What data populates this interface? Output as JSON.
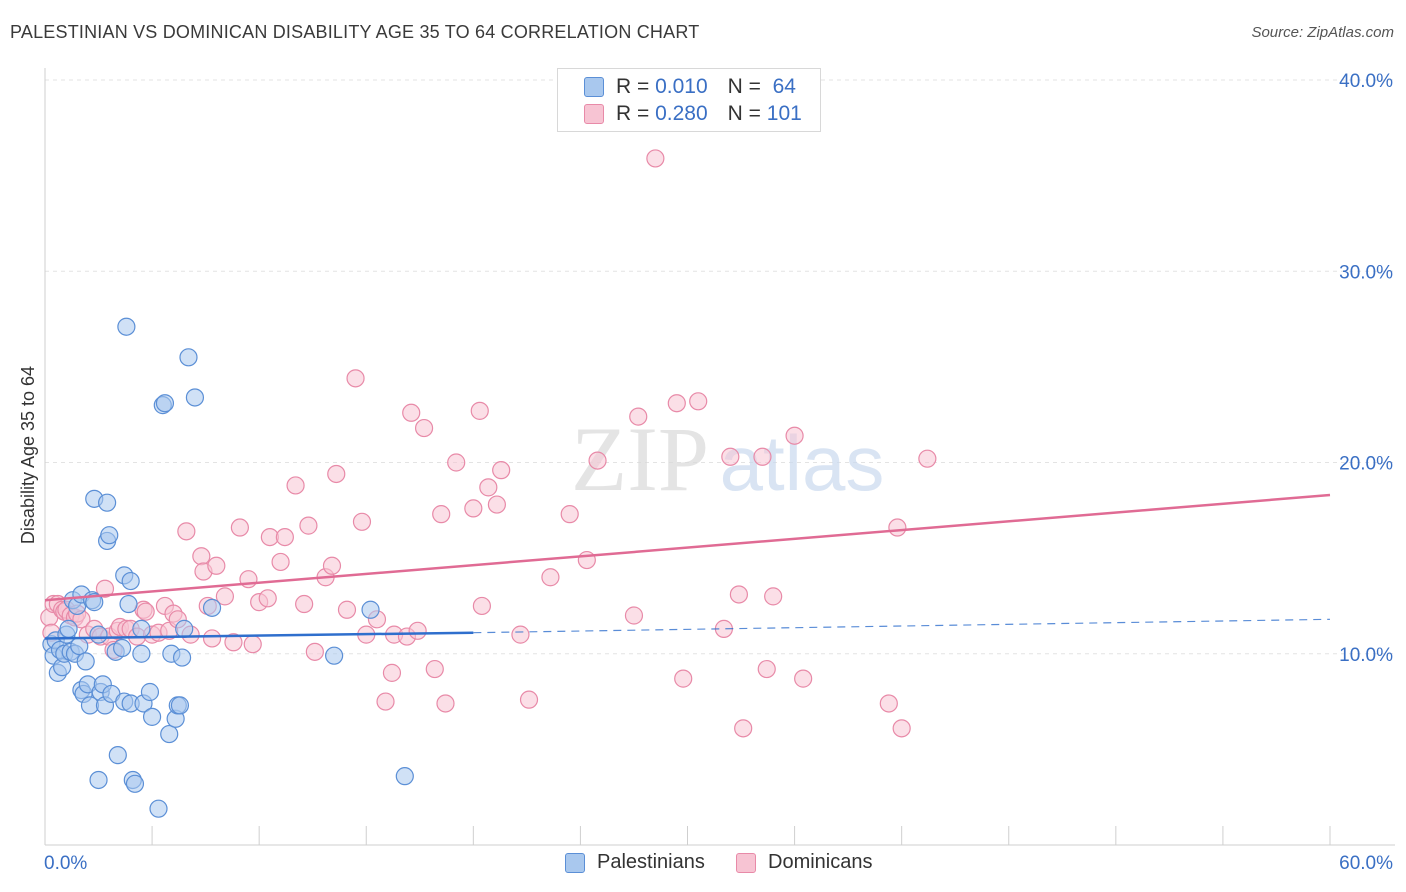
{
  "header": {
    "title": "PALESTINIAN VS DOMINICAN DISABILITY AGE 35 TO 64 CORRELATION CHART",
    "source": "Source: ZipAtlas.com"
  },
  "legend": {
    "rows": [
      {
        "r_label": "R =",
        "r_value": "0.010",
        "n_label": "N =",
        "n_value": "64"
      },
      {
        "r_label": "R =",
        "r_value": "0.280",
        "n_label": "N =",
        "n_value": "101"
      }
    ]
  },
  "watermark": {
    "part1": "ZIP",
    "part2": "atlas"
  },
  "colors": {
    "palestinian_fill": "#a9c8ee",
    "palestinian_stroke": "#5b8fd6",
    "palestinian_line": "#2f6fcd",
    "dominican_fill": "#f7c4d3",
    "dominican_stroke": "#e88aa8",
    "dominican_line": "#e06b94",
    "axis_text": "#3a6fc4",
    "grid": "#e3e3e3"
  },
  "chart_data": {
    "type": "scatter",
    "title": "PALESTINIAN VS DOMINICAN DISABILITY AGE 35 TO 64 CORRELATION CHART",
    "xlabel": "",
    "ylabel": "Disability Age 35 to 64",
    "xlim": [
      0,
      60
    ],
    "ylim": [
      0,
      40
    ],
    "x_tick_labels": [
      "0.0%",
      "60.0%"
    ],
    "y_ticks": [
      10,
      20,
      30,
      40
    ],
    "y_tick_labels": [
      "10.0%",
      "20.0%",
      "30.0%",
      "40.0%"
    ],
    "grid": true,
    "legend_position": "top-center",
    "series": [
      {
        "name": "Palestinians",
        "r": 0.01,
        "n": 64,
        "trend": {
          "x_start": 0,
          "y_start": 10.8,
          "x_solid_end": 20,
          "y_solid_end": 11.1,
          "x_end": 60,
          "y_end": 11.8
        },
        "points": [
          [
            0.3,
            10.5
          ],
          [
            0.4,
            9.9
          ],
          [
            0.5,
            10.7
          ],
          [
            0.6,
            9.0
          ],
          [
            0.7,
            10.2
          ],
          [
            0.8,
            9.3
          ],
          [
            0.9,
            10.0
          ],
          [
            1.0,
            11.0
          ],
          [
            1.1,
            11.3
          ],
          [
            1.2,
            10.1
          ],
          [
            1.3,
            12.8
          ],
          [
            1.4,
            10.0
          ],
          [
            1.5,
            12.5
          ],
          [
            1.6,
            10.4
          ],
          [
            1.7,
            13.1
          ],
          [
            1.7,
            8.1
          ],
          [
            1.8,
            7.9
          ],
          [
            1.9,
            9.6
          ],
          [
            2.0,
            8.4
          ],
          [
            2.1,
            7.3
          ],
          [
            2.2,
            12.8
          ],
          [
            2.3,
            12.7
          ],
          [
            2.3,
            18.1
          ],
          [
            2.5,
            3.4
          ],
          [
            2.5,
            11.0
          ],
          [
            2.6,
            8.0
          ],
          [
            2.7,
            8.4
          ],
          [
            2.8,
            7.3
          ],
          [
            2.9,
            17.9
          ],
          [
            2.9,
            15.9
          ],
          [
            3.0,
            16.2
          ],
          [
            3.1,
            7.9
          ],
          [
            3.3,
            10.1
          ],
          [
            3.4,
            4.7
          ],
          [
            3.6,
            10.3
          ],
          [
            3.7,
            7.5
          ],
          [
            3.7,
            14.1
          ],
          [
            3.8,
            27.1
          ],
          [
            3.9,
            12.6
          ],
          [
            4.0,
            7.4
          ],
          [
            4.0,
            13.8
          ],
          [
            4.1,
            3.4
          ],
          [
            4.2,
            3.2
          ],
          [
            4.5,
            11.3
          ],
          [
            4.5,
            10.0
          ],
          [
            4.6,
            7.4
          ],
          [
            4.9,
            8.0
          ],
          [
            5.0,
            6.7
          ],
          [
            5.3,
            1.9
          ],
          [
            5.5,
            23.0
          ],
          [
            5.6,
            23.1
          ],
          [
            5.8,
            5.8
          ],
          [
            5.9,
            10.0
          ],
          [
            6.1,
            6.6
          ],
          [
            6.2,
            7.3
          ],
          [
            6.3,
            7.3
          ],
          [
            6.4,
            9.8
          ],
          [
            6.5,
            11.3
          ],
          [
            6.7,
            25.5
          ],
          [
            7.0,
            23.4
          ],
          [
            7.8,
            12.4
          ],
          [
            13.5,
            9.9
          ],
          [
            15.2,
            12.3
          ],
          [
            16.8,
            3.6
          ]
        ]
      },
      {
        "name": "Dominicans",
        "r": 0.28,
        "n": 101,
        "trend": {
          "x_start": 0,
          "y_start": 12.8,
          "x_end": 60,
          "y_end": 18.3
        },
        "points": [
          [
            0.2,
            11.9
          ],
          [
            0.3,
            11.1
          ],
          [
            0.4,
            12.6
          ],
          [
            0.6,
            12.6
          ],
          [
            0.8,
            12.3
          ],
          [
            0.9,
            12.2
          ],
          [
            1.0,
            12.3
          ],
          [
            1.2,
            12.0
          ],
          [
            1.4,
            11.9
          ],
          [
            1.5,
            12.1
          ],
          [
            1.7,
            11.8
          ],
          [
            2.0,
            11.0
          ],
          [
            2.3,
            11.3
          ],
          [
            2.6,
            10.9
          ],
          [
            2.8,
            13.4
          ],
          [
            3.0,
            10.9
          ],
          [
            3.2,
            10.2
          ],
          [
            3.4,
            11.2
          ],
          [
            3.5,
            11.4
          ],
          [
            3.8,
            11.3
          ],
          [
            4.0,
            11.3
          ],
          [
            4.3,
            10.9
          ],
          [
            4.6,
            12.3
          ],
          [
            4.7,
            12.2
          ],
          [
            5.0,
            11.0
          ],
          [
            5.3,
            11.1
          ],
          [
            5.6,
            12.5
          ],
          [
            5.8,
            11.2
          ],
          [
            6.0,
            12.1
          ],
          [
            6.2,
            11.8
          ],
          [
            6.6,
            16.4
          ],
          [
            6.8,
            11.0
          ],
          [
            7.3,
            15.1
          ],
          [
            7.4,
            14.3
          ],
          [
            7.6,
            12.5
          ],
          [
            7.8,
            10.8
          ],
          [
            8.0,
            14.6
          ],
          [
            8.4,
            13.0
          ],
          [
            8.8,
            10.6
          ],
          [
            9.1,
            16.6
          ],
          [
            9.5,
            13.9
          ],
          [
            9.7,
            10.5
          ],
          [
            10.0,
            12.7
          ],
          [
            10.4,
            12.9
          ],
          [
            10.5,
            16.1
          ],
          [
            11.0,
            14.8
          ],
          [
            11.2,
            16.1
          ],
          [
            11.7,
            18.8
          ],
          [
            12.1,
            12.6
          ],
          [
            12.3,
            16.7
          ],
          [
            12.6,
            10.1
          ],
          [
            13.1,
            14.0
          ],
          [
            13.4,
            14.6
          ],
          [
            13.6,
            19.4
          ],
          [
            14.1,
            12.3
          ],
          [
            14.5,
            24.4
          ],
          [
            14.8,
            16.9
          ],
          [
            15.0,
            11.0
          ],
          [
            15.5,
            11.8
          ],
          [
            15.9,
            7.5
          ],
          [
            16.2,
            9.0
          ],
          [
            16.3,
            11.0
          ],
          [
            16.9,
            10.9
          ],
          [
            17.1,
            22.6
          ],
          [
            17.4,
            11.2
          ],
          [
            17.7,
            21.8
          ],
          [
            18.2,
            9.2
          ],
          [
            18.5,
            17.3
          ],
          [
            18.7,
            7.4
          ],
          [
            19.2,
            20.0
          ],
          [
            20.0,
            17.6
          ],
          [
            20.3,
            22.7
          ],
          [
            20.4,
            12.5
          ],
          [
            20.7,
            18.7
          ],
          [
            21.1,
            17.8
          ],
          [
            21.3,
            19.6
          ],
          [
            22.2,
            11.0
          ],
          [
            22.6,
            7.6
          ],
          [
            23.6,
            14.0
          ],
          [
            24.5,
            17.3
          ],
          [
            25.3,
            14.9
          ],
          [
            25.8,
            20.1
          ],
          [
            27.5,
            12.0
          ],
          [
            27.7,
            22.4
          ],
          [
            28.5,
            35.9
          ],
          [
            29.5,
            23.1
          ],
          [
            29.8,
            8.7
          ],
          [
            30.5,
            23.2
          ],
          [
            31.7,
            11.3
          ],
          [
            32.0,
            20.3
          ],
          [
            32.4,
            13.1
          ],
          [
            32.6,
            6.1
          ],
          [
            33.5,
            20.3
          ],
          [
            33.7,
            9.2
          ],
          [
            34.0,
            13.0
          ],
          [
            35.0,
            21.4
          ],
          [
            35.4,
            8.7
          ],
          [
            39.4,
            7.4
          ],
          [
            39.8,
            16.6
          ],
          [
            40.0,
            6.1
          ],
          [
            41.2,
            20.2
          ]
        ]
      }
    ]
  },
  "bottom_legend": {
    "items": [
      "Palestinians",
      "Dominicans"
    ]
  }
}
